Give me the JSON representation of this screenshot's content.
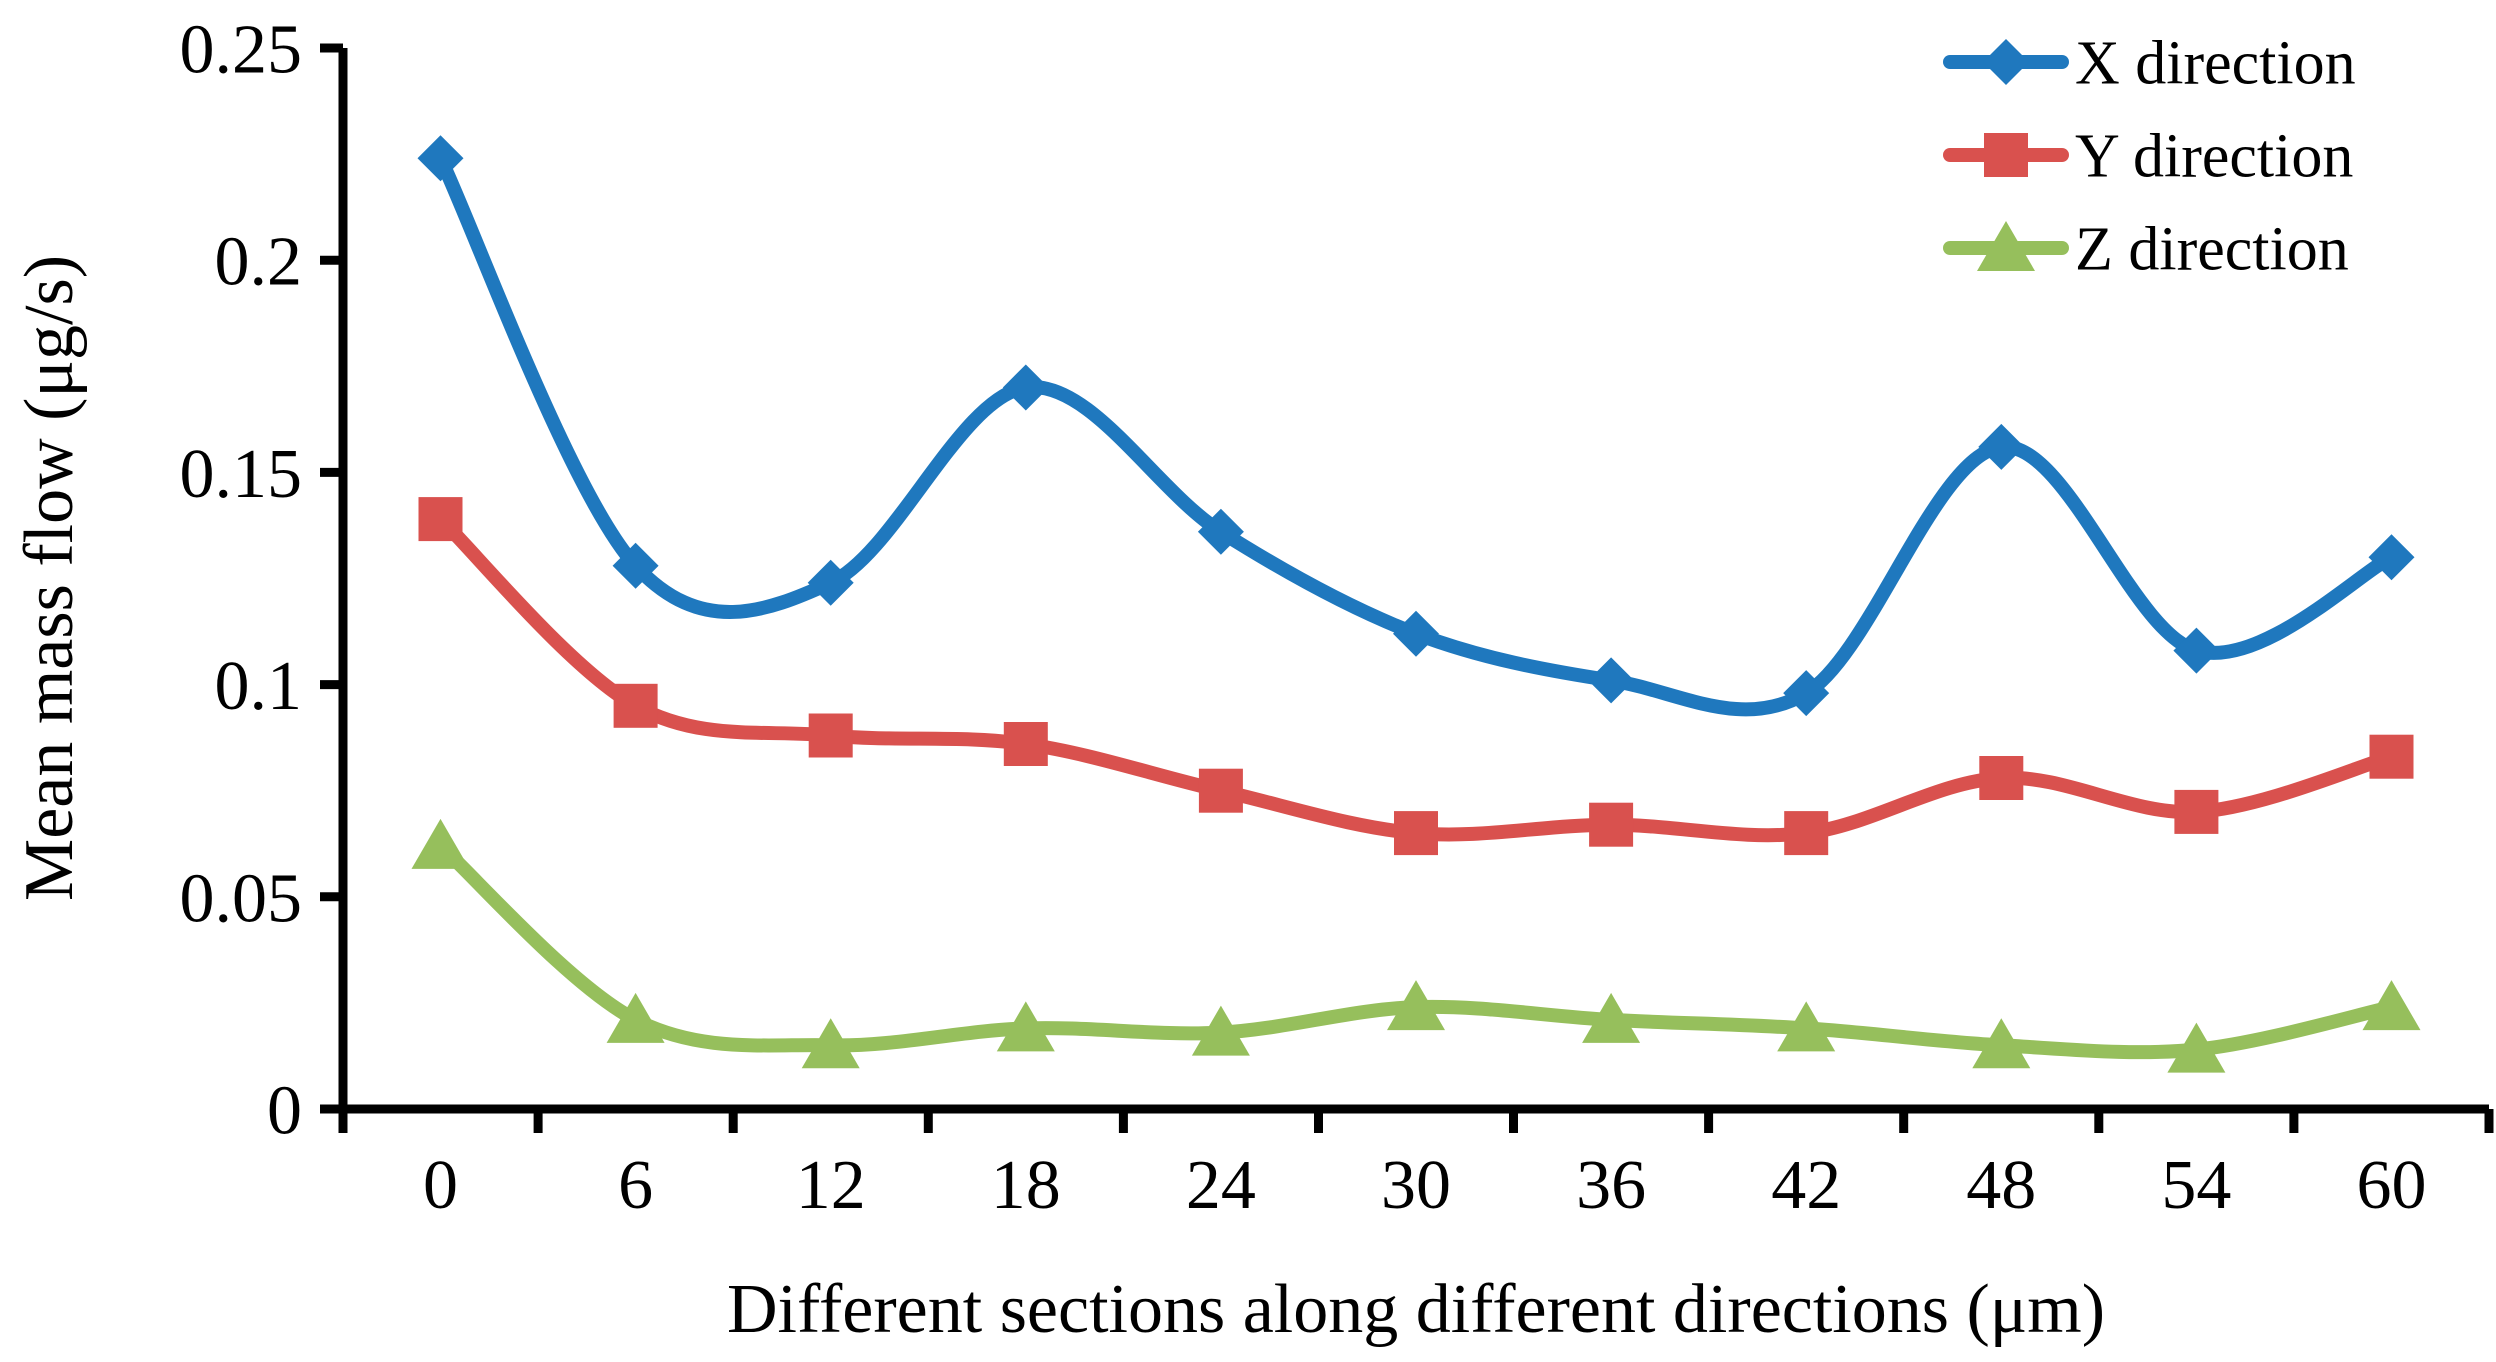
{
  "figure": {
    "background": "#FFFFFF",
    "text_color": "#000000",
    "axis_color": "#000000"
  },
  "chart_data": {
    "type": "line",
    "title": "",
    "xlabel": "Different sections along different directions (μm)",
    "ylabel": "Mean mass flow (μg/s)",
    "categories": [
      0,
      6,
      12,
      18,
      24,
      30,
      36,
      42,
      48,
      54,
      60
    ],
    "x_tick_labels": [
      "0",
      "6",
      "12",
      "18",
      "24",
      "30",
      "36",
      "42",
      "48",
      "54",
      "60"
    ],
    "y_ticks": [
      0.25,
      0.2,
      0.15,
      0.1,
      0.05,
      0
    ],
    "y_tick_labels": [
      "0.25",
      "0.2",
      "0.15",
      "0.1",
      "0.05",
      "0"
    ],
    "ylim": [
      0,
      0.25
    ],
    "grid": false,
    "line_smoothing": true,
    "legend_position": "top-right",
    "series": [
      {
        "name": "X direction",
        "color": "#1F78BE",
        "marker": "diamond",
        "values": [
          0.224,
          0.128,
          0.124,
          0.17,
          0.136,
          0.112,
          0.101,
          0.098,
          0.156,
          0.108,
          0.13
        ]
      },
      {
        "name": "Y direction",
        "color": "#D9514E",
        "marker": "square",
        "values": [
          0.139,
          0.095,
          0.088,
          0.086,
          0.075,
          0.065,
          0.067,
          0.065,
          0.078,
          0.07,
          0.083
        ]
      },
      {
        "name": "Z direction",
        "color": "#96BF5C",
        "marker": "triangle",
        "values": [
          0.062,
          0.021,
          0.015,
          0.019,
          0.018,
          0.024,
          0.021,
          0.019,
          0.015,
          0.014,
          0.024
        ]
      }
    ]
  }
}
